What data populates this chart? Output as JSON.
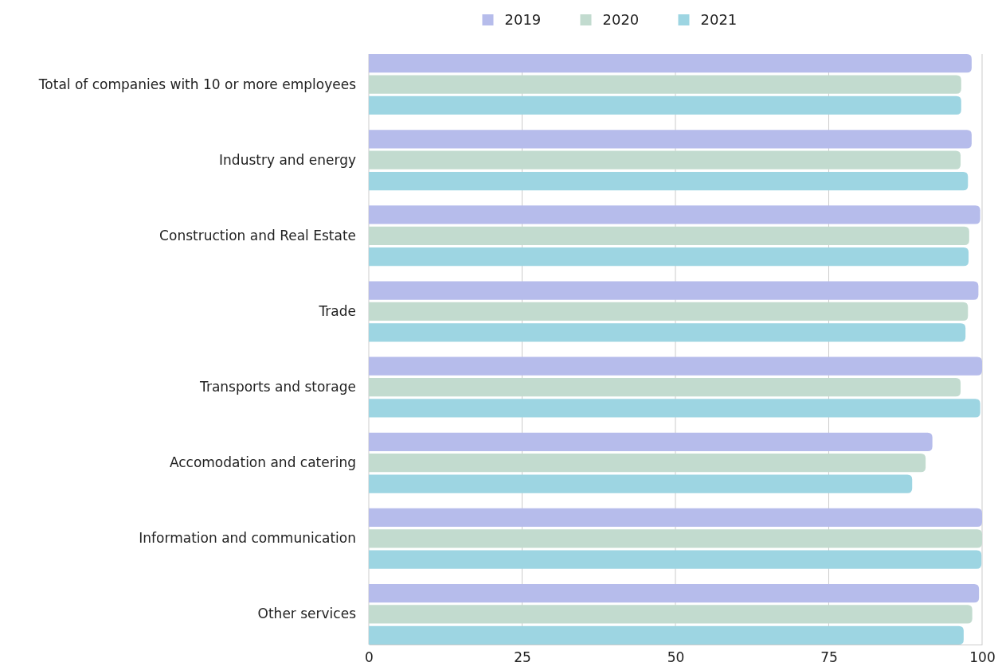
{
  "chart_data": {
    "type": "bar",
    "orientation": "horizontal",
    "categories": [
      "Total of companies with 10 or more employees",
      "Industry and energy",
      "Construction and Real Estate",
      "Trade",
      "Transports and storage",
      "Accomodation and catering",
      "Information and communication",
      "Other services"
    ],
    "series": [
      {
        "name": "2019",
        "color": "#b6bceb",
        "values": [
          98.3,
          98.3,
          99.7,
          99.4,
          100,
          91.9,
          100,
          99.5
        ]
      },
      {
        "name": "2020",
        "color": "#c2dbcf",
        "values": [
          96.6,
          96.5,
          97.9,
          97.7,
          96.5,
          90.8,
          100,
          98.4
        ]
      },
      {
        "name": "2021",
        "color": "#9dd5e2",
        "values": [
          96.6,
          97.7,
          97.8,
          97.3,
          99.7,
          88.6,
          99.9,
          97.0
        ]
      }
    ],
    "xlim": [
      0,
      100
    ],
    "xticks": [
      0,
      25,
      50,
      75,
      100
    ],
    "grid": "x",
    "legend": "top"
  }
}
